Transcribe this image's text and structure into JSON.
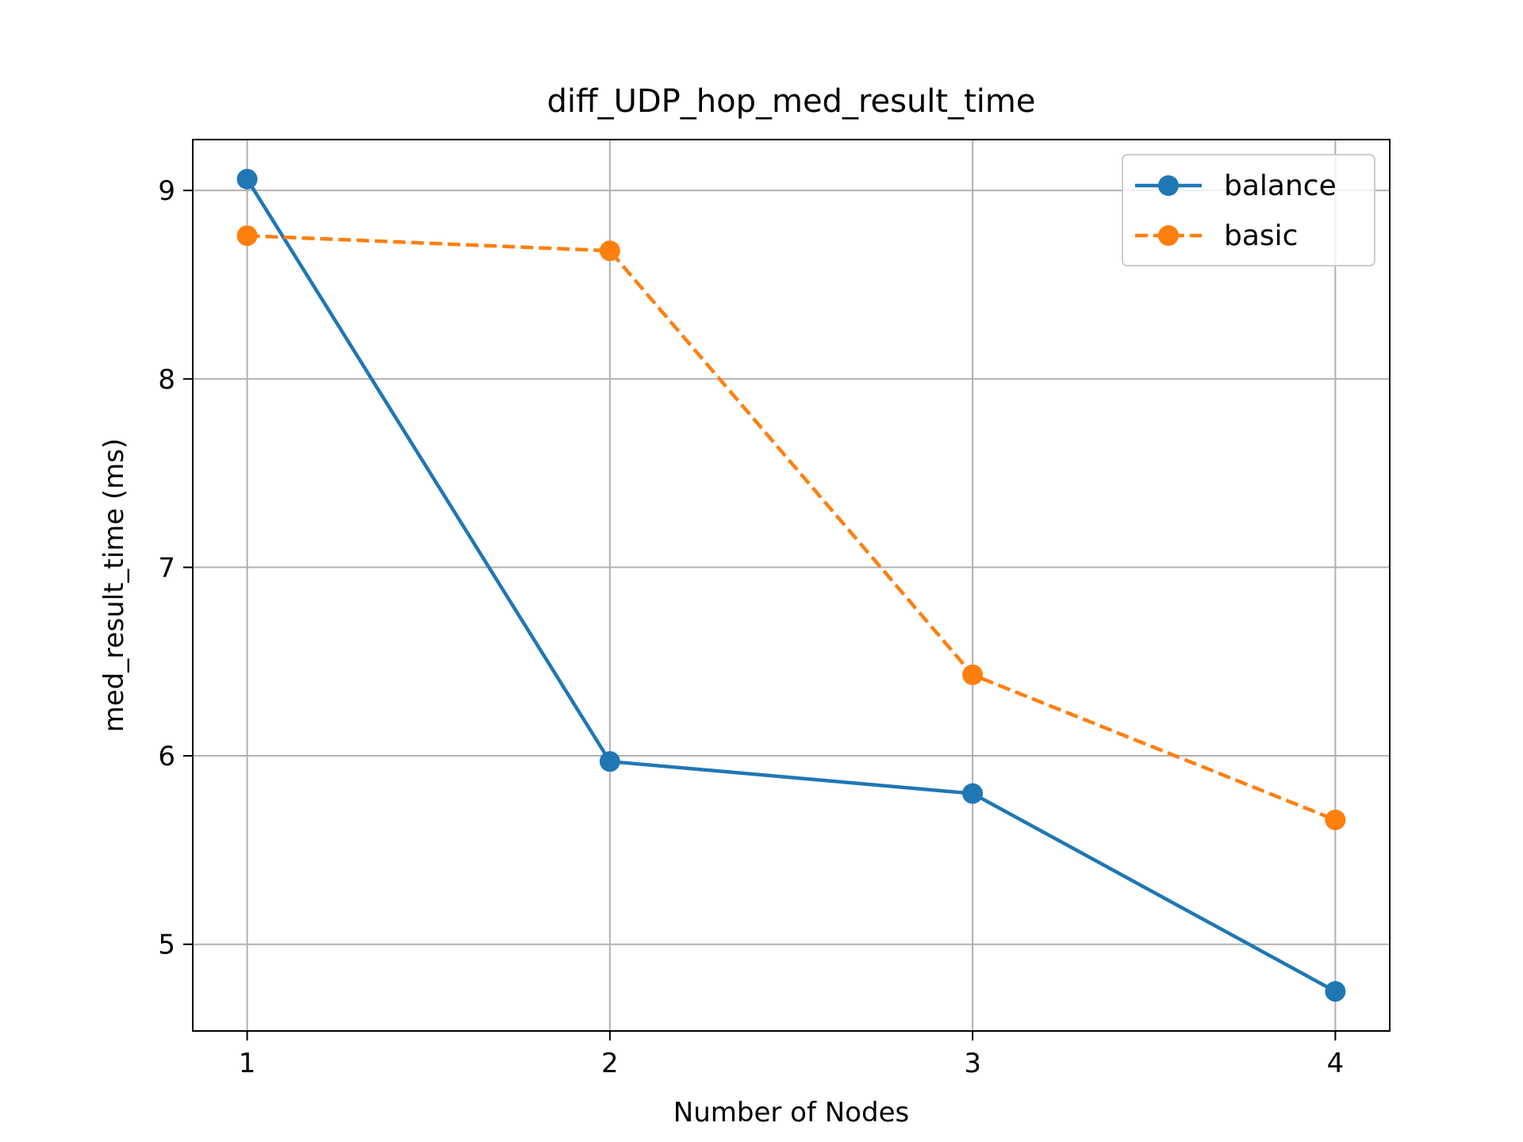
{
  "chart_data": {
    "type": "line",
    "title": "diff_UDP_hop_med_result_time",
    "xlabel": "Number of Nodes",
    "ylabel": "med_result_time (ms)",
    "x": [
      1,
      2,
      3,
      4
    ],
    "x_ticks": [
      "1",
      "2",
      "3",
      "4"
    ],
    "xlim": [
      0.85,
      4.15
    ],
    "y_ticks": [
      "5",
      "6",
      "7",
      "8",
      "9"
    ],
    "ylim": [
      4.54,
      9.27
    ],
    "grid": true,
    "legend_position": "top-right",
    "series": [
      {
        "name": "balance",
        "values": [
          9.06,
          5.97,
          5.8,
          4.75
        ],
        "color": "#1f77b4",
        "line_style": "solid",
        "marker": "circle"
      },
      {
        "name": "basic",
        "values": [
          8.76,
          8.68,
          6.43,
          5.66
        ],
        "color": "#ff7f0e",
        "line_style": "dashed",
        "marker": "circle"
      }
    ]
  }
}
